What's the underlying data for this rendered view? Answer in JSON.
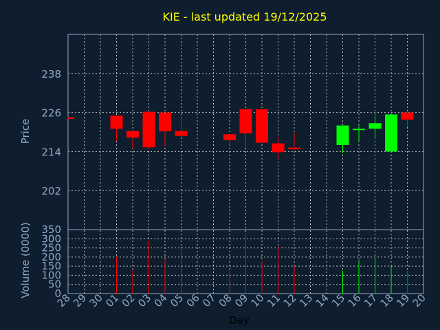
{
  "chart_data": [
    {
      "type": "candlestick",
      "title": "KIE - last updated 19/12/2025",
      "ylabel": "Price",
      "xlabel": "",
      "ylim": [
        190,
        250
      ],
      "yticks": [
        202,
        214,
        226,
        238
      ],
      "grid": true,
      "x": [
        "28",
        "29",
        "30",
        "01",
        "02",
        "03",
        "04",
        "05",
        "06",
        "07",
        "08",
        "09",
        "10",
        "11",
        "12",
        "13",
        "14",
        "15",
        "16",
        "17",
        "18",
        "19",
        "20"
      ],
      "candles": [
        {
          "x": "28",
          "open": 224.5,
          "close": 224.0,
          "high": 224.5,
          "low": 224.0
        },
        {
          "x": "01",
          "open": 225.0,
          "close": 221.0,
          "high": 225.0,
          "low": 217.3
        },
        {
          "x": "02",
          "open": 220.3,
          "close": 218.3,
          "high": 220.3,
          "low": 215.0
        },
        {
          "x": "03",
          "open": 226.2,
          "close": 215.3,
          "high": 226.2,
          "low": 214.8
        },
        {
          "x": "04",
          "open": 226.0,
          "close": 220.2,
          "high": 226.0,
          "low": 215.5
        },
        {
          "x": "05",
          "open": 220.3,
          "close": 218.8,
          "high": 224.5,
          "low": 218.5
        },
        {
          "x": "08",
          "open": 219.3,
          "close": 217.5,
          "high": 219.3,
          "low": 216.0
        },
        {
          "x": "09",
          "open": 227.0,
          "close": 219.6,
          "high": 227.0,
          "low": 215.2
        },
        {
          "x": "10",
          "open": 227.0,
          "close": 216.7,
          "high": 227.0,
          "low": 216.7
        },
        {
          "x": "11",
          "open": 216.5,
          "close": 213.8,
          "high": 218.5,
          "low": 211.8
        },
        {
          "x": "12",
          "open": 215.2,
          "close": 214.7,
          "high": 219.7,
          "low": 214.5
        },
        {
          "x": "15",
          "open": 216.0,
          "close": 222.0,
          "high": 222.0,
          "low": 213.5
        },
        {
          "x": "16",
          "open": 220.6,
          "close": 221.0,
          "high": 222.0,
          "low": 217.0
        },
        {
          "x": "17",
          "open": 221.0,
          "close": 222.7,
          "high": 225.0,
          "low": 218.0
        },
        {
          "x": "18",
          "open": 214.0,
          "close": 225.4,
          "high": 225.4,
          "low": 214.0
        },
        {
          "x": "19",
          "open": 226.0,
          "close": 223.8,
          "high": 226.0,
          "low": 221.5
        }
      ],
      "up_color": "#00ff00",
      "down_color": "#ff0000"
    },
    {
      "type": "bar",
      "title": "",
      "ylabel": "Volume (0000)",
      "xlabel": "Day",
      "ylim": [
        0,
        350
      ],
      "yticks": [
        0,
        50,
        100,
        150,
        200,
        250,
        300,
        350
      ],
      "grid": true,
      "categories": [
        "28",
        "29",
        "30",
        "01",
        "02",
        "03",
        "04",
        "05",
        "06",
        "07",
        "08",
        "09",
        "10",
        "11",
        "12",
        "13",
        "14",
        "15",
        "16",
        "17",
        "18",
        "19",
        "20"
      ],
      "values": [
        0,
        0,
        0,
        200,
        130,
        290,
        185,
        250,
        0,
        0,
        120,
        330,
        180,
        260,
        150,
        0,
        0,
        125,
        185,
        190,
        150,
        125,
        0
      ],
      "colors": [
        "",
        "",
        "",
        "#ff0000",
        "#ff0000",
        "#ff0000",
        "#ff0000",
        "#ff0000",
        "",
        "",
        "#ff0000",
        "#ff0000",
        "#ff0000",
        "#ff0000",
        "#ff0000",
        "",
        "",
        "#00ff00",
        "#00ff00",
        "#00ff00",
        "#00ff00",
        "#ff0000",
        ""
      ]
    }
  ],
  "colors": {
    "background": "#0f1e2e",
    "axis": "#8fa8c8",
    "title": "#ffff00",
    "grid": "#c0c0c0"
  }
}
